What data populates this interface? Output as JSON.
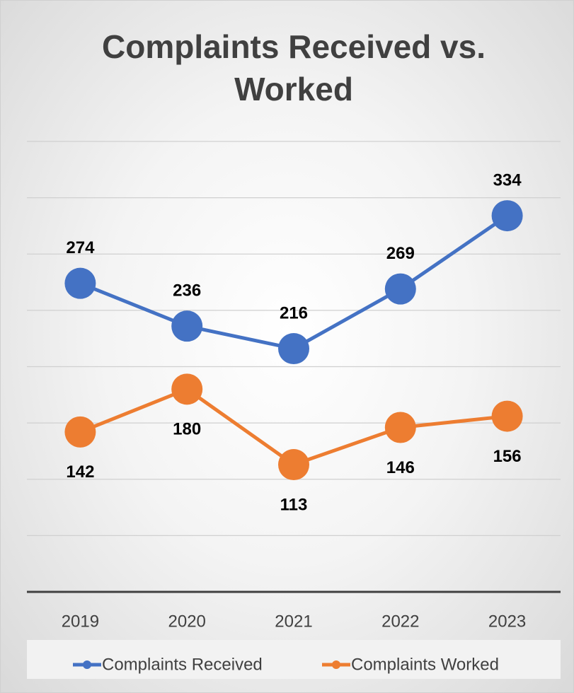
{
  "chart_data": {
    "type": "line",
    "title": "Complaints Received vs. Worked",
    "categories": [
      "2019",
      "2020",
      "2021",
      "2022",
      "2023"
    ],
    "series": [
      {
        "name": "Complaints Received",
        "color": "#4472c4",
        "values": [
          274,
          236,
          216,
          269,
          334
        ]
      },
      {
        "name": "Complaints Worked",
        "color": "#ed7d31",
        "values": [
          142,
          180,
          113,
          146,
          156
        ]
      }
    ],
    "ylim": [
      0,
      400
    ],
    "yticks": [
      0,
      50,
      100,
      150,
      200,
      250,
      300,
      350,
      400
    ],
    "grid": true,
    "legend": "bottom"
  }
}
